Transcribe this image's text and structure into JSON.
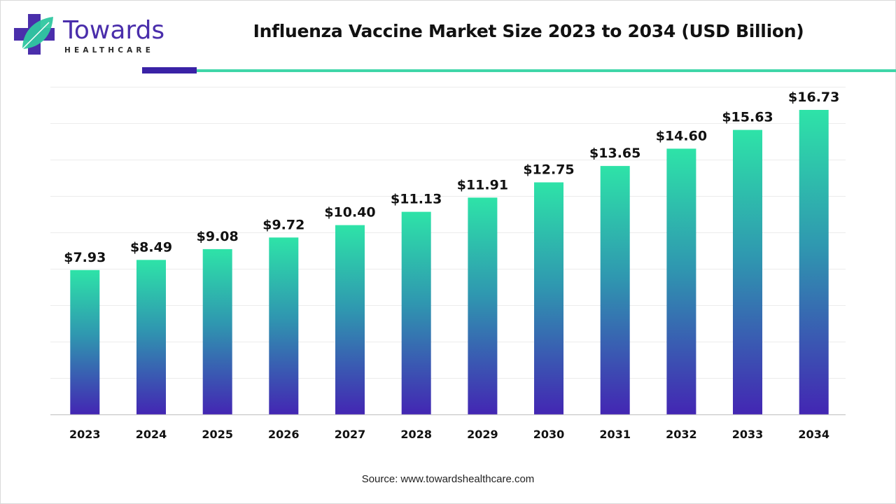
{
  "brand": {
    "name": "Towards",
    "tagline": "HEALTHCARE"
  },
  "header": {
    "title": "Influenza Vaccine Market Size 2023 to 2034 (USD Billion)"
  },
  "footer": {
    "source_label": "Source:",
    "source_url": "www.towardshealthcare.com"
  },
  "colors": {
    "bar_top": "#2ee3a8",
    "bar_mid": "#2f97b0",
    "bar_bottom": "#4326b3",
    "accent_rule": "#3a22a6",
    "main_rule": "#3fd6a8",
    "logo_purple": "#4a2eab",
    "logo_teal": "#2fc7a0"
  },
  "chart_data": {
    "type": "bar",
    "title": "Influenza Vaccine Market Size 2023 to 2034 (USD Billion)",
    "xlabel": "",
    "ylabel": "",
    "categories": [
      "2023",
      "2024",
      "2025",
      "2026",
      "2027",
      "2028",
      "2029",
      "2030",
      "2031",
      "2032",
      "2033",
      "2034"
    ],
    "values": [
      7.93,
      8.49,
      9.08,
      9.72,
      10.4,
      11.13,
      11.91,
      12.75,
      13.65,
      14.6,
      15.63,
      16.73
    ],
    "value_labels": [
      "$7.93",
      "$8.49",
      "$9.08",
      "$9.72",
      "$10.40",
      "$11.13",
      "$11.91",
      "$12.75",
      "$13.65",
      "$14.60",
      "$15.63",
      "$16.73"
    ],
    "ylim": [
      0,
      18
    ],
    "grid": true,
    "legend": "none"
  }
}
